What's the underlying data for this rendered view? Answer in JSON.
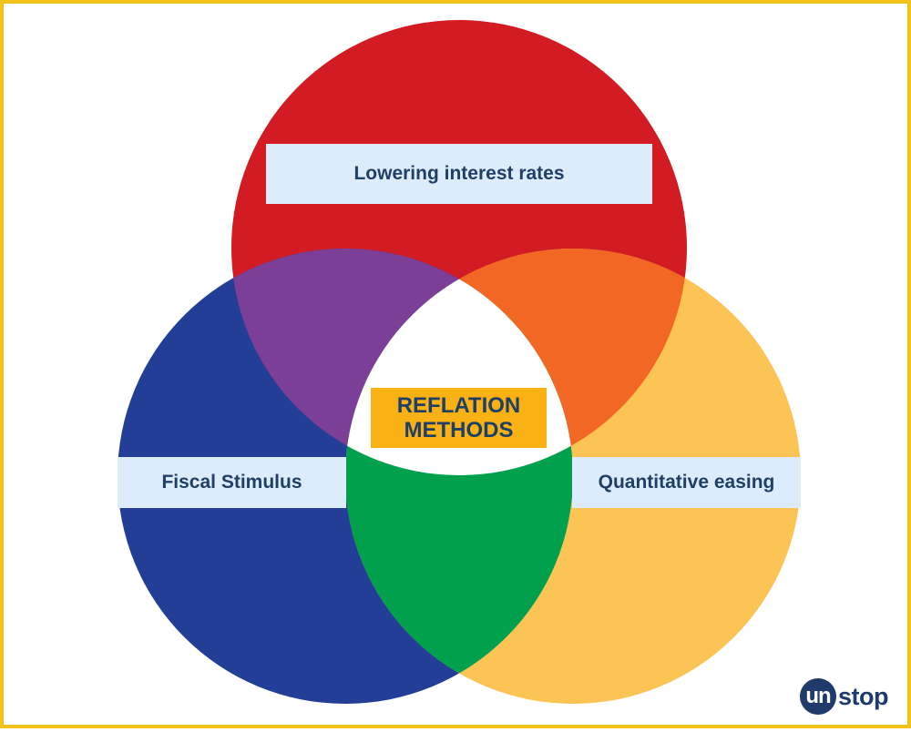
{
  "diagram": {
    "type": "venn",
    "sets": [
      {
        "id": "top",
        "label": "Lowering interest rates",
        "color": "#d21b22"
      },
      {
        "id": "left",
        "label": "Fiscal Stimulus",
        "color": "#233e96"
      },
      {
        "id": "right",
        "label": "Quantitative easing",
        "color": "#fcc455"
      }
    ],
    "overlaps": {
      "top_left": "#7b3f97",
      "top_right": "#f26724",
      "left_right": "#00a04d",
      "center": "#ffffff"
    },
    "center_label": {
      "line1": "REFLATION",
      "line2": "METHODS",
      "bg": "#f9b113"
    },
    "label_bg": "#dcecfb",
    "text_color": "#1f3f66"
  },
  "logo": {
    "badge": "un",
    "rest": "stop",
    "color": "#1f3b6b"
  },
  "frame_color": "#f2c318"
}
